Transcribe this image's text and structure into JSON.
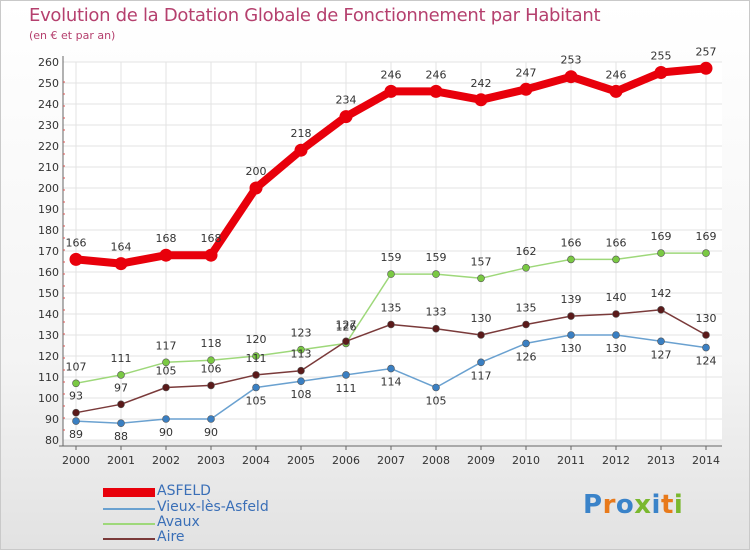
{
  "title": "Evolution de la Dotation Globale de Fonctionnement par Habitant",
  "subtitle": "(en € et par an)",
  "logo_text": "Proxiti",
  "colors": {
    "title": "#b5406e",
    "axis_text": "#333333",
    "legend_text": "#3a6fb7",
    "logo": [
      "#3a83c9",
      "#e87a1b",
      "#3a83c9",
      "#7ab82e",
      "#3a83c9",
      "#e87a1b",
      "#7ab82e"
    ]
  },
  "chart_data": {
    "type": "line",
    "x": [
      "2000",
      "2001",
      "2002",
      "2003",
      "2004",
      "2005",
      "2006",
      "2007",
      "2008",
      "2009",
      "2010",
      "2011",
      "2012",
      "2013",
      "2014"
    ],
    "ylim": [
      80,
      260
    ],
    "yticks": [
      80,
      90,
      100,
      110,
      120,
      130,
      140,
      150,
      160,
      170,
      180,
      190,
      200,
      210,
      220,
      230,
      240,
      250,
      260
    ],
    "grid": true,
    "legend_position": "bottom-left",
    "series": [
      {
        "name": "ASFELD",
        "color": "#e8000b",
        "values": [
          166,
          164,
          168,
          168,
          200,
          218,
          234,
          246,
          246,
          242,
          247,
          253,
          246,
          255,
          257
        ],
        "labels": [
          "166",
          "164",
          "168",
          "168",
          "200",
          "218",
          "234",
          "246",
          "246",
          "242",
          "247",
          "253",
          "246",
          "255",
          "257"
        ]
      },
      {
        "name": "Vieux-lès-Asfeld",
        "color": "#6aa1d0",
        "marker": "#3a7fc2",
        "values": [
          89,
          88,
          90,
          90,
          105,
          108,
          111,
          114,
          105,
          117,
          126,
          130,
          130,
          127,
          124
        ],
        "labels": [
          "89",
          "88",
          "90",
          "90",
          "105",
          "108",
          "111",
          "114",
          "105",
          "117",
          "126",
          "130",
          "130",
          "127",
          "124"
        ]
      },
      {
        "name": "Avaux",
        "color": "#9ed87a",
        "marker": "#7ac943",
        "values": [
          107,
          111,
          117,
          118,
          120,
          123,
          126,
          159,
          159,
          157,
          162,
          166,
          166,
          169,
          169
        ],
        "labels": [
          "107",
          "111",
          "117",
          "118",
          "120",
          "123",
          "126",
          "159",
          "159",
          "157",
          "162",
          "166",
          "166",
          "169",
          "169"
        ]
      },
      {
        "name": "Aire",
        "color": "#7a3a3a",
        "marker": "#5a1a1a",
        "values": [
          93,
          97,
          105,
          106,
          111,
          113,
          127,
          135,
          133,
          130,
          135,
          139,
          140,
          142,
          130
        ],
        "labels": [
          "93",
          "97",
          "105",
          "106",
          "111",
          "113",
          "127",
          "135",
          "133",
          "130",
          "135",
          "139",
          "140",
          "142",
          "130"
        ]
      }
    ]
  }
}
